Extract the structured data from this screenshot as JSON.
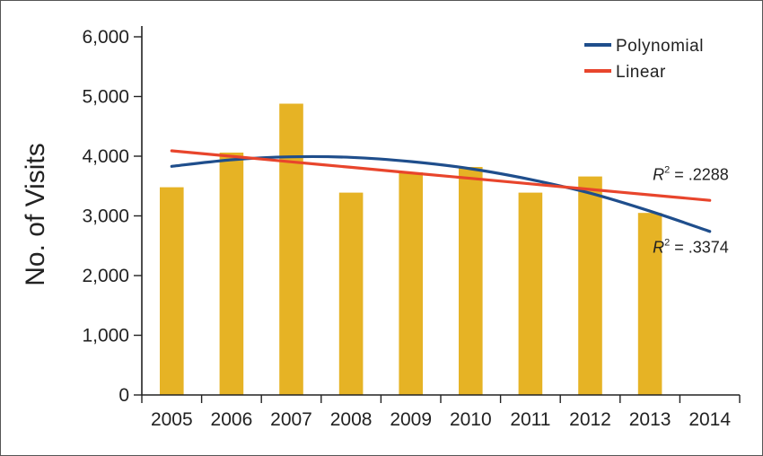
{
  "chart_data": {
    "type": "bar",
    "categories": [
      "2005",
      "2006",
      "2007",
      "2008",
      "2009",
      "2010",
      "2011",
      "2012",
      "2013",
      "2014"
    ],
    "values": [
      3480,
      4060,
      4880,
      3390,
      3730,
      3820,
      3390,
      3660,
      3050,
      null
    ],
    "bar_color": "#E6B325",
    "ylabel": "No. of Visits",
    "xlabel": "",
    "ylim": [
      0,
      6000
    ],
    "yticks": [
      0,
      1000,
      2000,
      3000,
      4000,
      5000,
      6000
    ],
    "ytick_labels": [
      "0",
      "1,000",
      "2,000",
      "3,000",
      "4,000",
      "5,000",
      "6,000"
    ],
    "grid": false,
    "legend_position": "top-right",
    "trendlines": [
      {
        "name": "Polynomial",
        "color": "#1F4E8C",
        "x": [
          "2005",
          "2006",
          "2007",
          "2008",
          "2009",
          "2010",
          "2011",
          "2012",
          "2013",
          "2014"
        ],
        "values": [
          3830,
          3940,
          3990,
          3980,
          3910,
          3790,
          3610,
          3380,
          3080,
          2740
        ]
      },
      {
        "name": "Linear",
        "color": "#E8452C",
        "x": [
          "2005",
          "2006",
          "2007",
          "2008",
          "2009",
          "2010",
          "2011",
          "2012",
          "2013",
          "2014"
        ],
        "values": [
          4090,
          3998,
          3906,
          3813,
          3721,
          3629,
          3537,
          3444,
          3352,
          3260
        ]
      }
    ],
    "annotations": [
      {
        "label_var": "R",
        "label_sup": "2",
        "label_rest": " = .2288",
        "anchor_x": "2013",
        "anchor_value": 3600
      },
      {
        "label_var": "R",
        "label_sup": "2",
        "label_rest": " = .3374",
        "anchor_x": "2013",
        "anchor_value": 2380
      }
    ]
  }
}
